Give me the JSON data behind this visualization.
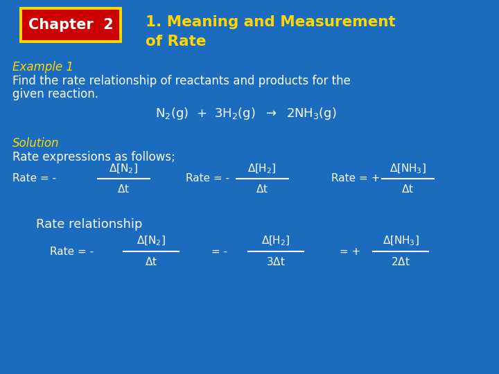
{
  "bg_color": "#1B6BBF",
  "title_color": "#FFD700",
  "white_color": "#FFFFFF",
  "chapter_box_bg": "#CC0000",
  "chapter_box_border": "#FFD700",
  "chapter_text": "Chapter  2",
  "heading1": "1. Meaning and Measurement",
  "heading2": "of Rate",
  "example_label": "Example 1",
  "problem_line1": "Find the rate relationship of reactants and products for the",
  "problem_line2": "given reaction.",
  "solution_label": "Solution",
  "rate_expr_label": "Rate expressions as follows;",
  "rate_rel_label": "Rate relationship"
}
